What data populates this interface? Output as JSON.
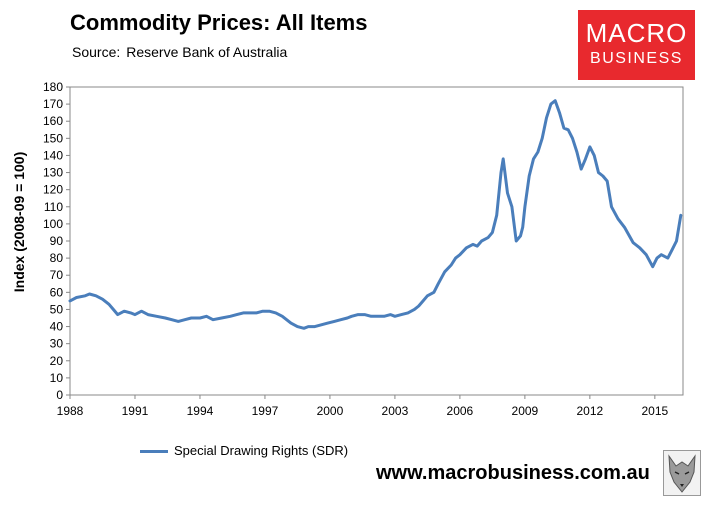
{
  "header": {
    "title": "Commodity Prices: All Items",
    "source_label": "Source:",
    "source_value": "Reserve Bank of Australia"
  },
  "logo": {
    "line1": "MACRO",
    "line2": "BUSINESS"
  },
  "footer": {
    "website": "www.macrobusiness.com.au"
  },
  "colors": {
    "series": "#4a7ebb",
    "logo_bg": "#e8292e",
    "plot_border": "#888888"
  },
  "chart_data": {
    "type": "line",
    "title": "Commodity Prices: All Items",
    "xlabel": "",
    "ylabel": "Index (2008-09 = 100)",
    "ylim": [
      0,
      180
    ],
    "xlim": [
      1988,
      2016.3
    ],
    "grid": false,
    "yticks": [
      0,
      10,
      20,
      30,
      40,
      50,
      60,
      70,
      80,
      90,
      100,
      110,
      120,
      130,
      140,
      150,
      160,
      170,
      180
    ],
    "xticks": [
      "1988",
      "1991",
      "1994",
      "1997",
      "2000",
      "2003",
      "2006",
      "2009",
      "2012",
      "2015"
    ],
    "legend": "bottom-left",
    "series": [
      {
        "name": "Special Drawing Rights (SDR)",
        "x": [
          1988.0,
          1988.3,
          1988.7,
          1988.9,
          1989.2,
          1989.5,
          1989.8,
          1990.0,
          1990.2,
          1990.5,
          1990.8,
          1991.0,
          1991.3,
          1991.6,
          1992.0,
          1992.4,
          1992.7,
          1993.0,
          1993.3,
          1993.6,
          1994.0,
          1994.3,
          1994.6,
          1995.0,
          1995.4,
          1995.7,
          1996.0,
          1996.3,
          1996.6,
          1996.9,
          1997.2,
          1997.5,
          1997.8,
          1998.0,
          1998.2,
          1998.5,
          1998.8,
          1999.0,
          1999.3,
          1999.6,
          1999.9,
          2000.2,
          2000.5,
          2000.8,
          2001.0,
          2001.3,
          2001.6,
          2001.9,
          2002.2,
          2002.5,
          2002.8,
          2003.0,
          2003.3,
          2003.6,
          2003.9,
          2004.1,
          2004.3,
          2004.5,
          2004.8,
          2005.0,
          2005.3,
          2005.6,
          2005.8,
          2006.0,
          2006.3,
          2006.6,
          2006.8,
          2007.0,
          2007.3,
          2007.5,
          2007.7,
          2007.9,
          2008.0,
          2008.2,
          2008.4,
          2008.6,
          2008.8,
          2008.9,
          2009.0,
          2009.2,
          2009.4,
          2009.6,
          2009.8,
          2010.0,
          2010.2,
          2010.4,
          2010.6,
          2010.8,
          2011.0,
          2011.2,
          2011.4,
          2011.6,
          2011.8,
          2012.0,
          2012.2,
          2012.4,
          2012.6,
          2012.8,
          2013.0,
          2013.3,
          2013.6,
          2014.0,
          2014.3,
          2014.6,
          2014.9,
          2015.1,
          2015.3,
          2015.6,
          2015.8,
          2016.0,
          2016.2
        ],
        "values": [
          55,
          57,
          58,
          59,
          58,
          56,
          53,
          50,
          47,
          49,
          48,
          47,
          49,
          47,
          46,
          45,
          44,
          43,
          44,
          45,
          45,
          46,
          44,
          45,
          46,
          47,
          48,
          48,
          48,
          49,
          49,
          48,
          46,
          44,
          42,
          40,
          39,
          40,
          40,
          41,
          42,
          43,
          44,
          45,
          46,
          47,
          47,
          46,
          46,
          46,
          47,
          46,
          47,
          48,
          50,
          52,
          55,
          58,
          60,
          65,
          72,
          76,
          80,
          82,
          86,
          88,
          87,
          90,
          92,
          95,
          105,
          130,
          138,
          118,
          110,
          90,
          93,
          98,
          110,
          128,
          138,
          142,
          150,
          162,
          170,
          172,
          165,
          156,
          155,
          150,
          142,
          132,
          138,
          145,
          140,
          130,
          128,
          125,
          110,
          103,
          98,
          89,
          86,
          82,
          75,
          80,
          82,
          80,
          85,
          90,
          105
        ]
      }
    ]
  }
}
